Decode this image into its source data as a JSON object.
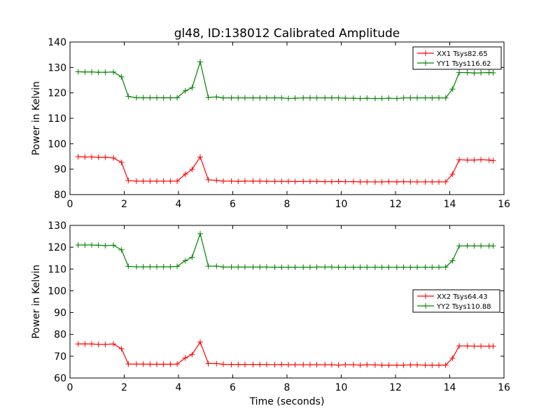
{
  "chart_data": [
    {
      "type": "line",
      "title": "gl48, ID:138012 Calibrated Amplitude",
      "xlabel": "",
      "ylabel": "Power in Kelvin",
      "xlim": [
        0,
        16
      ],
      "ylim": [
        80,
        140
      ],
      "xticks": [
        "0",
        "2",
        "4",
        "6",
        "8",
        "10",
        "12",
        "14",
        "16"
      ],
      "yticks": [
        "80",
        "90",
        "100",
        "110",
        "120",
        "130",
        "140"
      ],
      "legend_position": "top-right",
      "grid": false,
      "x": [
        0.3,
        0.55,
        0.8,
        1.05,
        1.3,
        1.6,
        1.9,
        2.15,
        2.45,
        2.7,
        2.95,
        3.2,
        3.45,
        3.7,
        3.95,
        4.25,
        4.5,
        4.8,
        5.1,
        5.4,
        5.65,
        5.95,
        6.2,
        6.45,
        6.75,
        7.0,
        7.25,
        7.55,
        7.8,
        8.05,
        8.3,
        8.6,
        8.85,
        9.1,
        9.4,
        9.65,
        9.9,
        10.15,
        10.45,
        10.7,
        10.95,
        11.25,
        11.5,
        11.75,
        12.05,
        12.3,
        12.55,
        12.8,
        13.1,
        13.35,
        13.6,
        13.85,
        14.1,
        14.35,
        14.65,
        14.9,
        15.15,
        15.45,
        15.6
      ],
      "series": [
        {
          "name": "XX1 Tsys82.65",
          "color": "#ff0000",
          "values": [
            94.9,
            94.8,
            94.8,
            94.7,
            94.7,
            94.4,
            92.7,
            85.5,
            85.3,
            85.3,
            85.3,
            85.3,
            85.3,
            85.3,
            85.3,
            88.0,
            89.9,
            94.8,
            85.8,
            85.6,
            85.3,
            85.3,
            85.2,
            85.3,
            85.3,
            85.3,
            85.2,
            85.2,
            85.2,
            85.2,
            85.1,
            85.2,
            85.2,
            85.2,
            85.1,
            85.1,
            85.2,
            85.1,
            85.1,
            85.0,
            85.0,
            85.0,
            85.0,
            85.1,
            85.0,
            85.1,
            85.0,
            85.0,
            85.0,
            85.0,
            85.0,
            85.0,
            88.0,
            93.7,
            93.6,
            93.6,
            93.7,
            93.6,
            93.4
          ]
        },
        {
          "name": "YY1 Tsys116.62",
          "color": "#008000",
          "values": [
            128.3,
            128.2,
            128.2,
            128.1,
            128.1,
            128.2,
            126.3,
            118.6,
            118.1,
            118.1,
            118.1,
            118.1,
            118.1,
            118.1,
            118.1,
            120.8,
            122.0,
            132.2,
            118.2,
            118.4,
            118.0,
            118.0,
            118.0,
            118.0,
            118.0,
            118.0,
            118.0,
            118.0,
            118.0,
            117.8,
            117.9,
            118.0,
            118.0,
            118.0,
            118.0,
            118.0,
            118.0,
            117.9,
            117.9,
            117.8,
            117.9,
            117.8,
            117.8,
            117.9,
            117.8,
            118.0,
            118.0,
            118.0,
            118.0,
            118.0,
            118.0,
            118.0,
            121.5,
            128.0,
            128.0,
            127.8,
            127.9,
            128.0,
            127.9
          ]
        }
      ]
    },
    {
      "type": "line",
      "title": "",
      "xlabel": "Time (seconds)",
      "ylabel": "Power in Kelvin",
      "xlim": [
        0,
        16
      ],
      "ylim": [
        60,
        130
      ],
      "xticks": [
        "0",
        "2",
        "4",
        "6",
        "8",
        "10",
        "12",
        "14",
        "16"
      ],
      "yticks": [
        "60",
        "70",
        "80",
        "90",
        "100",
        "110",
        "120",
        "130"
      ],
      "legend_position": "center-right",
      "grid": false,
      "x": [
        0.3,
        0.55,
        0.8,
        1.05,
        1.3,
        1.6,
        1.9,
        2.15,
        2.45,
        2.7,
        2.95,
        3.2,
        3.45,
        3.7,
        3.95,
        4.25,
        4.5,
        4.8,
        5.1,
        5.4,
        5.65,
        5.95,
        6.2,
        6.45,
        6.75,
        7.0,
        7.25,
        7.55,
        7.8,
        8.05,
        8.3,
        8.6,
        8.85,
        9.1,
        9.4,
        9.65,
        9.9,
        10.15,
        10.45,
        10.7,
        10.95,
        11.25,
        11.5,
        11.75,
        12.05,
        12.3,
        12.55,
        12.8,
        13.1,
        13.35,
        13.6,
        13.85,
        14.1,
        14.35,
        14.65,
        14.9,
        15.15,
        15.45,
        15.6
      ],
      "series": [
        {
          "name": "XX2 Tsys64.43",
          "color": "#ff0000",
          "values": [
            75.6,
            75.6,
            75.6,
            75.4,
            75.4,
            75.6,
            73.4,
            66.4,
            66.4,
            66.4,
            66.3,
            66.3,
            66.3,
            66.3,
            66.4,
            69.2,
            70.8,
            76.5,
            66.6,
            66.6,
            66.3,
            66.2,
            66.2,
            66.2,
            66.2,
            66.2,
            66.2,
            66.1,
            66.2,
            66.1,
            66.1,
            66.1,
            66.1,
            66.1,
            66.1,
            66.1,
            65.9,
            66.1,
            66.1,
            65.9,
            66.1,
            66.0,
            65.9,
            65.9,
            65.9,
            65.9,
            66.0,
            66.0,
            65.9,
            65.9,
            65.9,
            65.9,
            69.1,
            74.7,
            74.7,
            74.6,
            74.6,
            74.6,
            74.6
          ]
        },
        {
          "name": "YY2 Tsys110.88",
          "color": "#008000",
          "values": [
            121.0,
            121.0,
            121.0,
            120.9,
            120.7,
            120.9,
            118.8,
            111.2,
            111.0,
            111.0,
            111.0,
            111.0,
            111.0,
            111.0,
            111.2,
            113.8,
            115.4,
            126.2,
            111.3,
            111.3,
            110.9,
            110.9,
            110.9,
            110.9,
            110.9,
            110.9,
            110.9,
            110.8,
            110.8,
            110.8,
            110.8,
            110.8,
            110.8,
            110.9,
            110.9,
            110.9,
            110.8,
            110.8,
            110.8,
            110.8,
            110.8,
            110.8,
            110.8,
            110.8,
            110.8,
            110.8,
            110.8,
            110.8,
            110.8,
            110.8,
            110.8,
            110.9,
            113.8,
            120.6,
            120.6,
            120.6,
            120.6,
            120.6,
            120.6
          ]
        }
      ]
    }
  ]
}
